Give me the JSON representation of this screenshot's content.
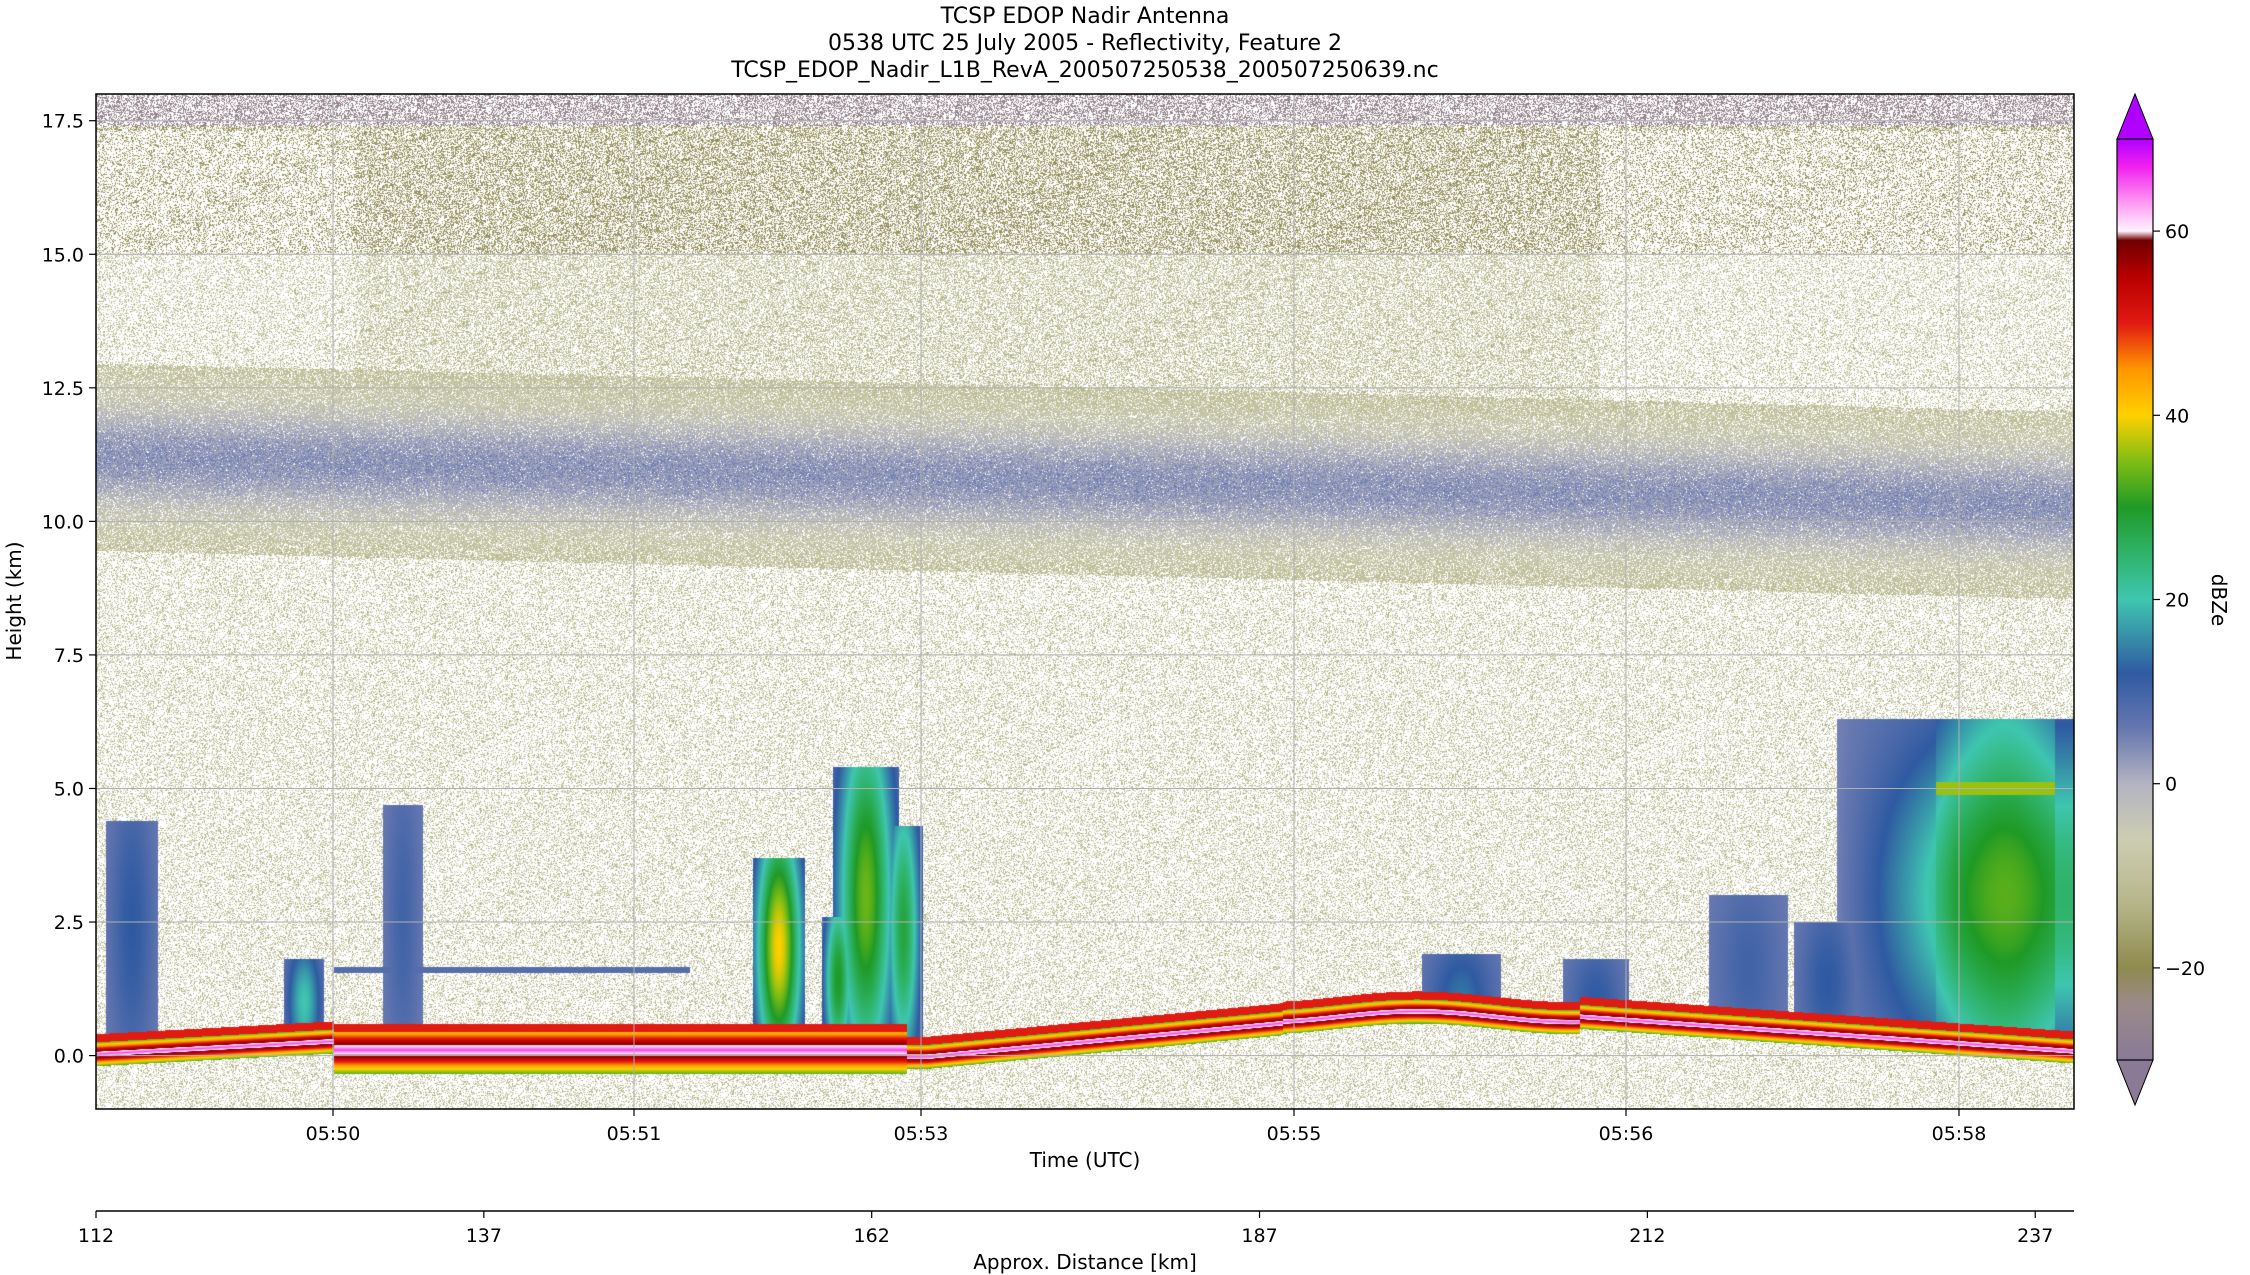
{
  "chart_data": {
    "type": "heatmap",
    "title": [
      "TCSP EDOP Nadir Antenna",
      "0538 UTC 25 July 2005 - Reflectivity, Feature 2",
      "TCSP_EDOP_Nadir_L1B_RevA_200507250538_200507250639.nc"
    ],
    "xlabel": "Time (UTC)",
    "ylabel": "Height (km)",
    "x2label": "Approx. Distance [km]",
    "colorbar_label": "dBZe",
    "x_ticks": [
      "05:50",
      "05:51",
      "05:53",
      "05:55",
      "05:56",
      "05:58"
    ],
    "y_ticks": [
      "0.0",
      "2.5",
      "5.0",
      "7.5",
      "10.0",
      "12.5",
      "15.0",
      "17.5"
    ],
    "y_tick_values": [
      0.0,
      2.5,
      5.0,
      7.5,
      10.0,
      12.5,
      15.0,
      17.5
    ],
    "ylim": [
      -1.0,
      18.0
    ],
    "distance_ticks": [
      "112",
      "137",
      "162",
      "187",
      "212",
      "237"
    ],
    "distance_tick_values": [
      112,
      137,
      162,
      187,
      212,
      237
    ],
    "distance_range": [
      112,
      239.5
    ],
    "colorbar_ticks": [
      "60",
      "40",
      "20",
      "0",
      "−20"
    ],
    "colorbar_tick_values": [
      60,
      40,
      20,
      0,
      -20
    ],
    "colorbar_range": [
      -30,
      70
    ],
    "colorbar_extend": "both",
    "colormap_stops": [
      {
        "v": -30,
        "c": "#8a7a96"
      },
      {
        "v": -24,
        "c": "#9a8a8a"
      },
      {
        "v": -20,
        "c": "#8f8a4e"
      },
      {
        "v": -13,
        "c": "#b6b68a"
      },
      {
        "v": -6,
        "c": "#cdcdb3"
      },
      {
        "v": 0,
        "c": "#b3b3c2"
      },
      {
        "v": 6,
        "c": "#6677b0"
      },
      {
        "v": 12,
        "c": "#2f5aa2"
      },
      {
        "v": 20,
        "c": "#3fc6b0"
      },
      {
        "v": 25,
        "c": "#2fb36a"
      },
      {
        "v": 30,
        "c": "#1f9a26"
      },
      {
        "v": 35,
        "c": "#7fbd14"
      },
      {
        "v": 40,
        "c": "#ffd000"
      },
      {
        "v": 45,
        "c": "#ff9600"
      },
      {
        "v": 50,
        "c": "#e11a12"
      },
      {
        "v": 55,
        "c": "#b80000"
      },
      {
        "v": 59,
        "c": "#700000"
      },
      {
        "v": 60,
        "c": "#fff3ff"
      },
      {
        "v": 63,
        "c": "#ff9cf2"
      },
      {
        "v": 67,
        "c": "#f020ee"
      },
      {
        "v": 70,
        "c": "#b000ff"
      }
    ],
    "features": {
      "cirrus_base_km": 10.0,
      "cirrus_top_km": 12.5,
      "surface_echo_km": [
        0.1,
        1.0
      ],
      "convective_cells": [
        {
          "time_frac": 0.345,
          "top_km": 3.7,
          "max_dbz": 40
        },
        {
          "time_frac": 0.39,
          "top_km": 5.4,
          "max_dbz": 35
        },
        {
          "time_frac": 0.41,
          "top_km": 4.3,
          "max_dbz": 30
        },
        {
          "time_frac": 0.97,
          "top_km": 6.3,
          "max_dbz": 30
        }
      ],
      "bright_band_km": 5.0
    },
    "grid": true
  }
}
